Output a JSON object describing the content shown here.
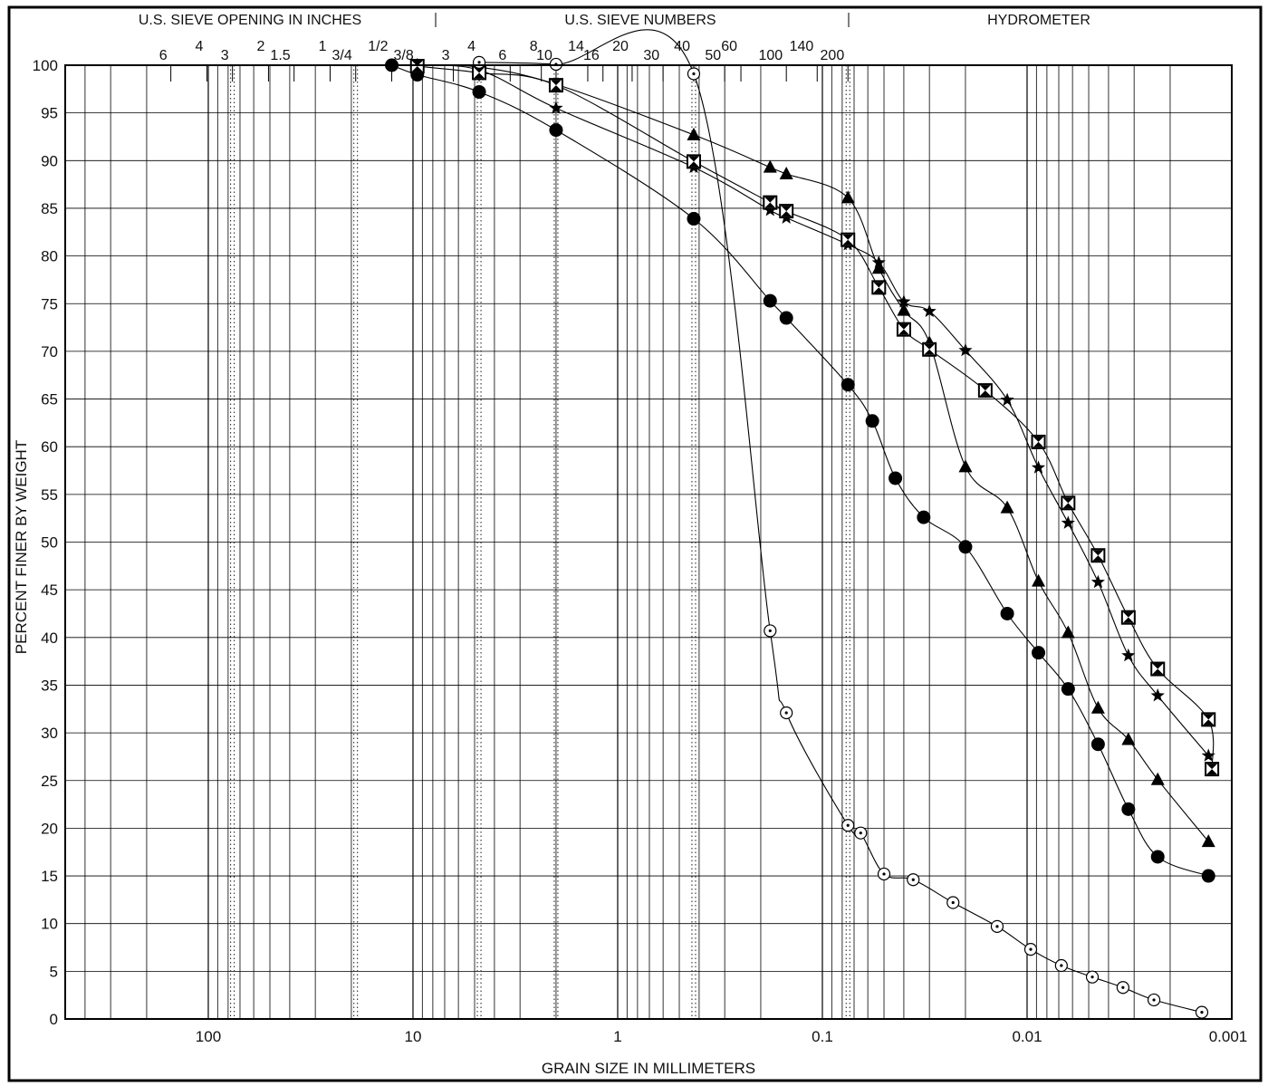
{
  "header": {
    "sections": [
      {
        "name": "inches",
        "label": "U.S. SIEVE OPENING IN INCHES"
      },
      {
        "name": "numbers",
        "label": "U.S. SIEVE NUMBERS"
      },
      {
        "name": "hydrometer",
        "label": "HYDROMETER"
      }
    ],
    "inch_labels": [
      {
        "label": "6",
        "mm": 152.4
      },
      {
        "label": "4",
        "mm": 101.6
      },
      {
        "label": "3",
        "mm": 76.2
      },
      {
        "label": "2",
        "mm": 50.8
      },
      {
        "label": "1.5",
        "mm": 38.1
      },
      {
        "label": "1",
        "mm": 25.4
      },
      {
        "label": "3/4",
        "mm": 19.05
      },
      {
        "label": "1/2",
        "mm": 12.7
      },
      {
        "label": "3/8",
        "mm": 9.525
      }
    ],
    "number_labels": [
      {
        "label": "3",
        "mm": 6.35
      },
      {
        "label": "4",
        "mm": 4.75
      },
      {
        "label": "6",
        "mm": 3.35
      },
      {
        "label": "8",
        "mm": 2.36
      },
      {
        "label": "10",
        "mm": 2.0
      },
      {
        "label": "14",
        "mm": 1.4
      },
      {
        "label": "16",
        "mm": 1.18
      },
      {
        "label": "20",
        "mm": 0.85
      },
      {
        "label": "30",
        "mm": 0.6
      },
      {
        "label": "40",
        "mm": 0.425
      },
      {
        "label": "50",
        "mm": 0.3
      },
      {
        "label": "60",
        "mm": 0.25
      },
      {
        "label": "100",
        "mm": 0.15
      },
      {
        "label": "140",
        "mm": 0.106
      },
      {
        "label": "200",
        "mm": 0.075
      }
    ]
  },
  "chart_data": {
    "type": "scatter",
    "x_scale": "log",
    "x_reversed": true,
    "xlim": [
      500,
      0.001
    ],
    "ylim": [
      0,
      100
    ],
    "xlabel": "GRAIN SIZE IN MILLIMETERS",
    "ylabel": "PERCENT FINER BY WEIGHT",
    "x_ticks": [
      {
        "value": 100,
        "label": "100"
      },
      {
        "value": 10,
        "label": "10"
      },
      {
        "value": 1,
        "label": "1"
      },
      {
        "value": 0.1,
        "label": "0.1"
      },
      {
        "value": 0.01,
        "label": "0.01"
      },
      {
        "value": 0.001,
        "label": "0.001"
      }
    ],
    "y_ticks": [
      0,
      5,
      10,
      15,
      20,
      25,
      30,
      35,
      40,
      45,
      50,
      55,
      60,
      65,
      70,
      75,
      80,
      85,
      90,
      95,
      100
    ],
    "y_tick_labels": [
      "0",
      "5",
      "10",
      "15",
      "20",
      "25",
      "30",
      "35",
      "40",
      "45",
      "50",
      "55",
      "60",
      "65",
      "70",
      "75",
      "80",
      "85",
      "90",
      "95",
      "100"
    ],
    "dotted_lines_mm": [
      76.2,
      19.05,
      4.75,
      2.0,
      0.425,
      0.075
    ],
    "grid": true,
    "series": [
      {
        "marker": "circle-filled",
        "points": [
          [
            12.7,
            100
          ],
          [
            9.525,
            99
          ],
          [
            4.75,
            97.2
          ],
          [
            2.0,
            93.2
          ],
          [
            0.425,
            83.9
          ],
          [
            0.18,
            75.3
          ],
          [
            0.15,
            73.5
          ],
          [
            0.075,
            66.5
          ],
          [
            0.057,
            62.7
          ],
          [
            0.044,
            56.7
          ],
          [
            0.032,
            52.6
          ],
          [
            0.02,
            49.5
          ],
          [
            0.0125,
            42.5
          ],
          [
            0.0088,
            38.4
          ],
          [
            0.0063,
            34.6
          ],
          [
            0.0045,
            28.8
          ],
          [
            0.0032,
            22
          ],
          [
            0.0023,
            17
          ],
          [
            0.0013,
            15
          ]
        ]
      },
      {
        "marker": "triangle-filled",
        "points": [
          [
            9.525,
            100
          ],
          [
            4.75,
            99.8
          ],
          [
            2.0,
            98
          ],
          [
            0.425,
            92.7
          ],
          [
            0.18,
            89.3
          ],
          [
            0.15,
            88.6
          ],
          [
            0.075,
            86.1
          ],
          [
            0.053,
            78.7
          ],
          [
            0.04,
            74.3
          ],
          [
            0.03,
            70.9
          ],
          [
            0.02,
            57.9
          ],
          [
            0.0125,
            53.6
          ],
          [
            0.0088,
            45.9
          ],
          [
            0.0063,
            40.5
          ],
          [
            0.0045,
            32.6
          ],
          [
            0.0032,
            29.3
          ],
          [
            0.0023,
            25.1
          ],
          [
            0.0013,
            18.6
          ]
        ]
      },
      {
        "marker": "star",
        "points": [
          [
            9.525,
            100
          ],
          [
            4.75,
            99.5
          ],
          [
            2.0,
            95.5
          ],
          [
            0.425,
            89.3
          ],
          [
            0.18,
            84.8
          ],
          [
            0.15,
            84
          ],
          [
            0.075,
            81.2
          ],
          [
            0.053,
            79.3
          ],
          [
            0.04,
            75.2
          ],
          [
            0.03,
            74.2
          ],
          [
            0.02,
            70.1
          ],
          [
            0.0125,
            64.9
          ],
          [
            0.0088,
            57.8
          ],
          [
            0.0063,
            52
          ],
          [
            0.0045,
            45.8
          ],
          [
            0.0032,
            38.1
          ],
          [
            0.0023,
            33.9
          ],
          [
            0.0013,
            27.6
          ]
        ]
      },
      {
        "marker": "hourglass-box",
        "points": [
          [
            9.525,
            99.9
          ],
          [
            4.75,
            99.2
          ],
          [
            2.0,
            97.9
          ],
          [
            0.425,
            89.9
          ],
          [
            0.18,
            85.6
          ],
          [
            0.15,
            84.7
          ],
          [
            0.075,
            81.7
          ],
          [
            0.053,
            76.7
          ],
          [
            0.04,
            72.3
          ],
          [
            0.03,
            70.2
          ],
          [
            0.016,
            65.9
          ],
          [
            0.0088,
            60.5
          ],
          [
            0.0063,
            54.1
          ],
          [
            0.0045,
            48.6
          ],
          [
            0.0032,
            42.1
          ],
          [
            0.0023,
            36.7
          ],
          [
            0.0013,
            31.4
          ],
          [
            0.00125,
            26.2
          ]
        ]
      },
      {
        "marker": "circle-dot",
        "points": [
          [
            4.75,
            100.3
          ],
          [
            2.0,
            100.1
          ],
          [
            0.425,
            99.1
          ],
          [
            0.18,
            40.7
          ],
          [
            0.15,
            32.1
          ],
          [
            0.075,
            20.3
          ],
          [
            0.065,
            19.5
          ],
          [
            0.05,
            15.2
          ],
          [
            0.036,
            14.6
          ],
          [
            0.023,
            12.2
          ],
          [
            0.014,
            9.7
          ],
          [
            0.0096,
            7.3
          ],
          [
            0.0068,
            5.6
          ],
          [
            0.0048,
            4.4
          ],
          [
            0.0034,
            3.3
          ],
          [
            0.0024,
            2
          ],
          [
            0.0014,
            0.7
          ]
        ]
      }
    ]
  }
}
